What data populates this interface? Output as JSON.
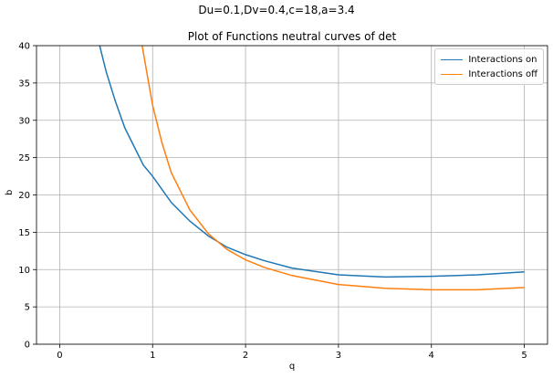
{
  "chart_data": {
    "type": "line",
    "suptitle": "Du=0.1,Dv=0.4,c=18,a=3.4",
    "title": "Plot of Functions neutral curves of det",
    "xlabel": "q",
    "ylabel": "b",
    "xlim": [
      -0.25,
      5.25
    ],
    "ylim": [
      0,
      40
    ],
    "xticks": [
      0,
      1,
      2,
      3,
      4,
      5
    ],
    "yticks": [
      0,
      5,
      10,
      15,
      20,
      25,
      30,
      35,
      40
    ],
    "grid": true,
    "legend_position": "top-right",
    "series": [
      {
        "name": "Interactions on",
        "color": "#1f77b4",
        "x": [
          0.4,
          0.5,
          0.6,
          0.7,
          0.8,
          0.9,
          1.0,
          1.2,
          1.4,
          1.6,
          1.8,
          2.0,
          2.2,
          2.5,
          3.0,
          3.5,
          4.0,
          4.5,
          5.0
        ],
        "y": [
          41.5,
          36.5,
          32.5,
          29.0,
          26.5,
          24.0,
          22.5,
          19.0,
          16.5,
          14.5,
          13.0,
          12.0,
          11.2,
          10.2,
          9.3,
          9.0,
          9.1,
          9.3,
          9.7
        ]
      },
      {
        "name": "Interactions off",
        "color": "#ff7f0e",
        "x": [
          0.88,
          0.95,
          1.0,
          1.1,
          1.2,
          1.4,
          1.6,
          1.8,
          2.0,
          2.2,
          2.5,
          3.0,
          3.5,
          4.0,
          4.5,
          5.0
        ],
        "y": [
          40.5,
          35.5,
          32.0,
          27.0,
          23.0,
          18.0,
          14.8,
          12.7,
          11.3,
          10.3,
          9.2,
          8.0,
          7.5,
          7.3,
          7.3,
          7.6
        ]
      }
    ]
  }
}
